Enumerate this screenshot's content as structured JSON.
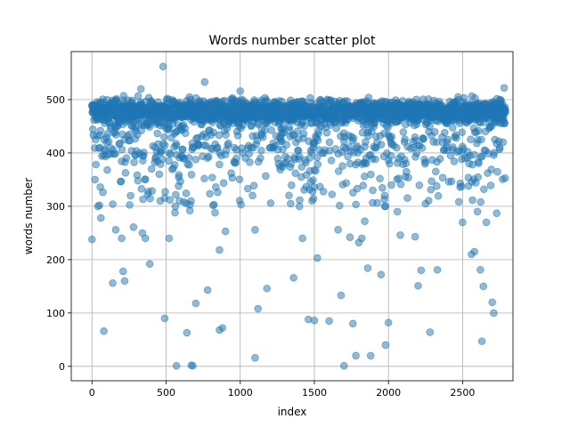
{
  "chart_data": {
    "type": "scatter",
    "title": "Words number scatter plot",
    "xlabel": "index",
    "ylabel": "words number",
    "xlim": [
      -140,
      2840
    ],
    "ylim": [
      -27,
      590
    ],
    "xticks": [
      0,
      500,
      1000,
      1500,
      2000,
      2500
    ],
    "yticks": [
      0,
      100,
      200,
      300,
      400,
      500
    ],
    "grid": true,
    "color": "#1f77b4",
    "marker_alpha": 0.5,
    "n_points": 2790,
    "main_band": {
      "center": 478,
      "spread": 22,
      "min": 440,
      "max": 505
    },
    "outliers": [
      [
        0,
        238
      ],
      [
        20,
        350
      ],
      [
        40,
        300
      ],
      [
        50,
        302
      ],
      [
        60,
        278
      ],
      [
        80,
        66
      ],
      [
        140,
        156
      ],
      [
        160,
        256
      ],
      [
        200,
        240
      ],
      [
        210,
        178
      ],
      [
        220,
        160
      ],
      [
        260,
        320
      ],
      [
        280,
        261
      ],
      [
        330,
        520
      ],
      [
        340,
        250
      ],
      [
        360,
        240
      ],
      [
        390,
        192
      ],
      [
        460,
        310
      ],
      [
        480,
        562
      ],
      [
        490,
        90
      ],
      [
        520,
        240
      ],
      [
        560,
        288
      ],
      [
        570,
        1
      ],
      [
        640,
        63
      ],
      [
        660,
        292
      ],
      [
        670,
        2
      ],
      [
        680,
        1
      ],
      [
        700,
        118
      ],
      [
        760,
        533
      ],
      [
        780,
        143
      ],
      [
        830,
        288
      ],
      [
        860,
        218
      ],
      [
        860,
        68
      ],
      [
        880,
        72
      ],
      [
        900,
        253
      ],
      [
        1000,
        516
      ],
      [
        1100,
        256
      ],
      [
        1100,
        16
      ],
      [
        1120,
        108
      ],
      [
        1180,
        146
      ],
      [
        1340,
        305
      ],
      [
        1360,
        166
      ],
      [
        1420,
        240
      ],
      [
        1460,
        88
      ],
      [
        1500,
        86
      ],
      [
        1520,
        203
      ],
      [
        1600,
        85
      ],
      [
        1660,
        256
      ],
      [
        1680,
        133
      ],
      [
        1700,
        1
      ],
      [
        1740,
        242
      ],
      [
        1760,
        80
      ],
      [
        1780,
        20
      ],
      [
        1800,
        232
      ],
      [
        1820,
        240
      ],
      [
        1840,
        272
      ],
      [
        1860,
        184
      ],
      [
        1880,
        20
      ],
      [
        1950,
        172
      ],
      [
        1980,
        40
      ],
      [
        2000,
        82
      ],
      [
        2020,
        340
      ],
      [
        2060,
        290
      ],
      [
        2080,
        246
      ],
      [
        2180,
        243
      ],
      [
        2200,
        151
      ],
      [
        2220,
        180
      ],
      [
        2250,
        305
      ],
      [
        2280,
        64
      ],
      [
        2330,
        181
      ],
      [
        2500,
        270
      ],
      [
        2560,
        210
      ],
      [
        2580,
        215
      ],
      [
        2600,
        290
      ],
      [
        2620,
        181
      ],
      [
        2630,
        47
      ],
      [
        2640,
        150
      ],
      [
        2660,
        270
      ],
      [
        2700,
        120
      ],
      [
        2710,
        100
      ],
      [
        2730,
        287
      ],
      [
        2780,
        522
      ]
    ]
  }
}
